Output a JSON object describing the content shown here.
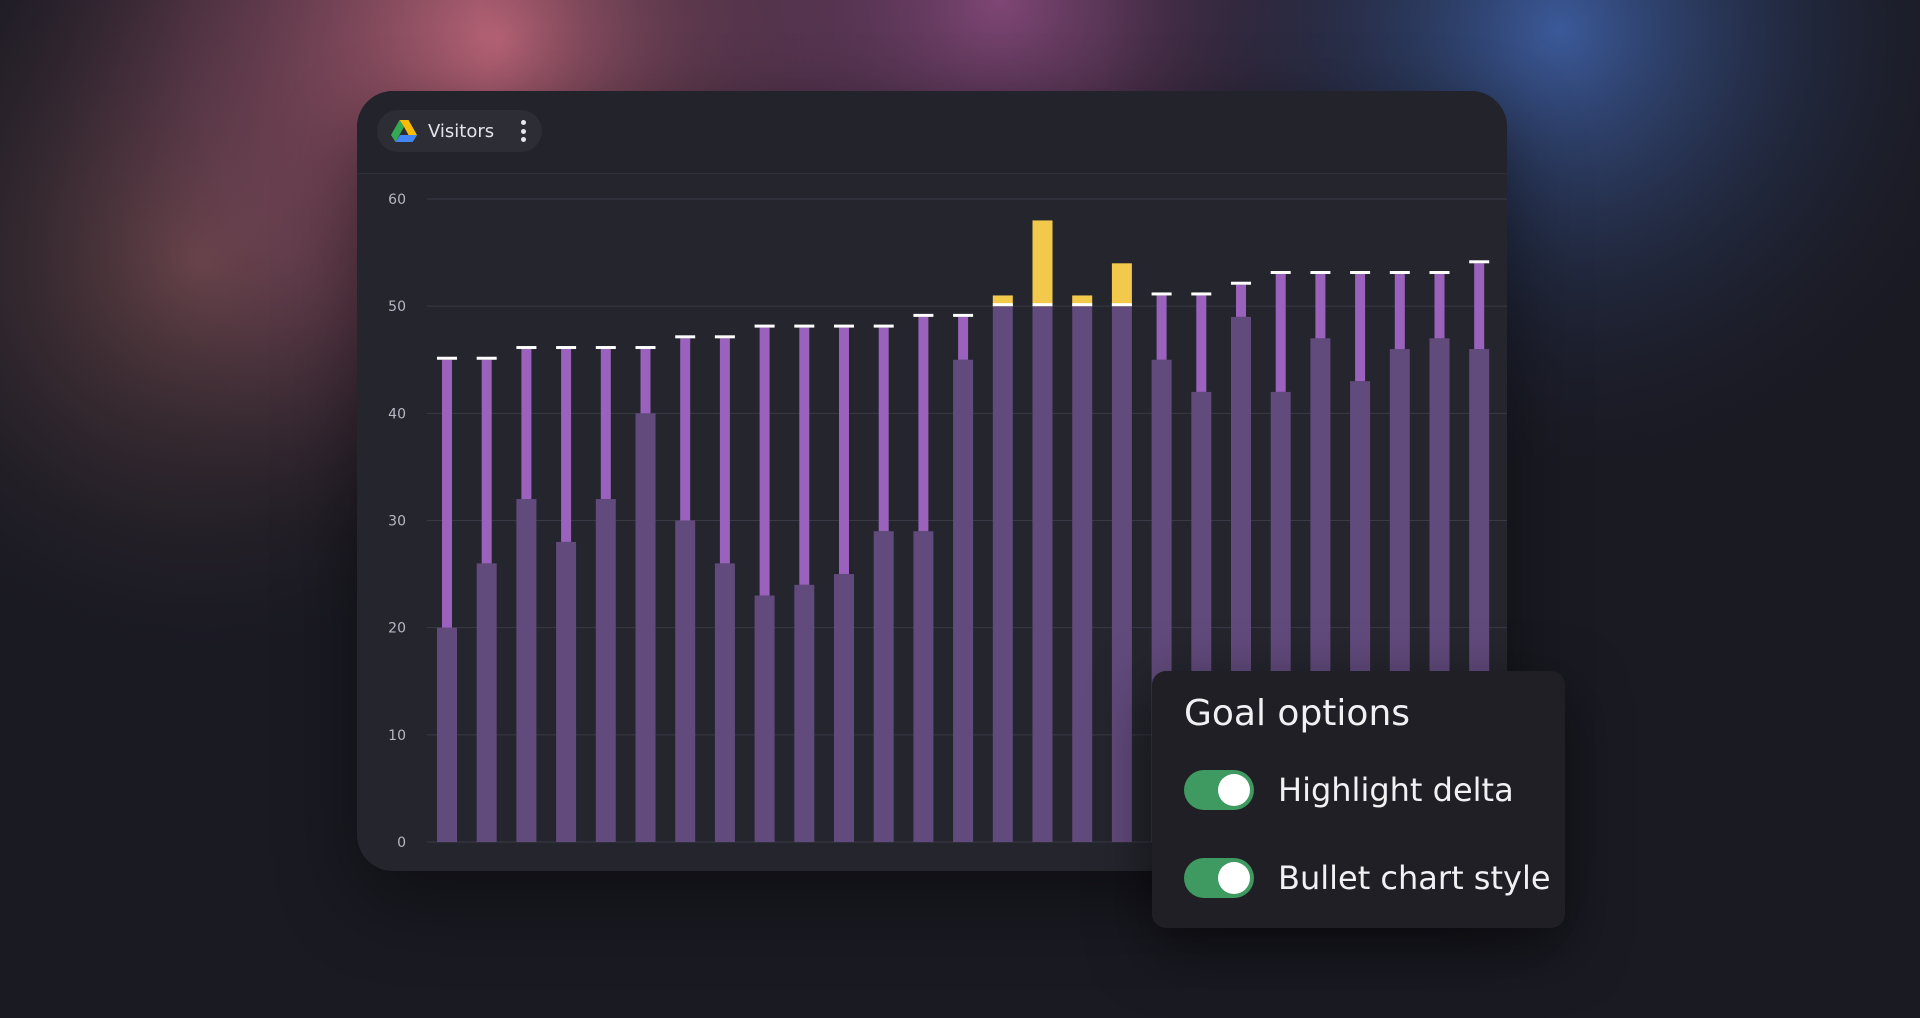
{
  "card": {
    "title": "Visitors"
  },
  "icons": {
    "drive": "google-drive-icon",
    "menu": "more-vertical-icon"
  },
  "panel": {
    "title": "Goal options",
    "options": [
      {
        "label": "Highlight delta",
        "checked": true
      },
      {
        "label": "Bullet chart style",
        "checked": true
      }
    ]
  },
  "colors": {
    "actual_bar": "#614a7c",
    "goal_gap": "#9a62bc",
    "exceeded": "#f3c94c",
    "goal_marker": "#ffffff",
    "toggle_on": "#3f9a62"
  },
  "chart_data": {
    "type": "bar",
    "title": "Visitors",
    "ylim": [
      0,
      60
    ],
    "yticks": [
      0,
      10,
      20,
      30,
      40,
      50,
      60
    ],
    "grid": true,
    "series": [
      {
        "name": "",
        "values": [
          20,
          26,
          32,
          28,
          32,
          40,
          30,
          26,
          23,
          24,
          25,
          29,
          29,
          45,
          51,
          58,
          51,
          54,
          45,
          42,
          49,
          42,
          47,
          43,
          46,
          47,
          46
        ]
      },
      {
        "name": "",
        "values": [
          45,
          45,
          46,
          46,
          46,
          46,
          47,
          47,
          48,
          48,
          48,
          48,
          49,
          49,
          50,
          50,
          50,
          50,
          51,
          51,
          52,
          53,
          53,
          53,
          53,
          53,
          54
        ]
      }
    ]
  }
}
